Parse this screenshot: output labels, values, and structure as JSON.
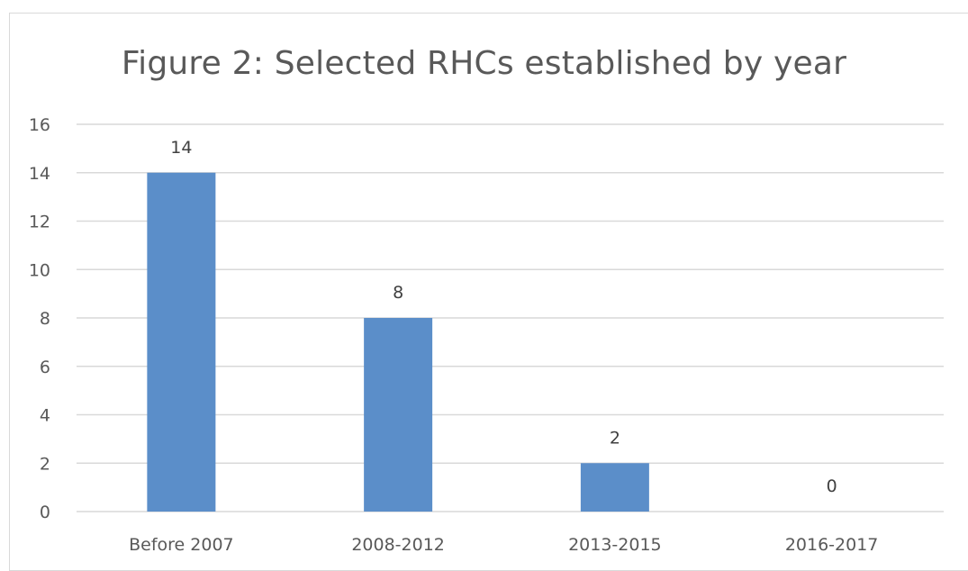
{
  "chart_data": {
    "type": "bar",
    "title": "Figure 2: Selected RHCs established by year",
    "categories": [
      "Before 2007",
      "2008-2012",
      "2013-2015",
      "2016-2017"
    ],
    "values": [
      14,
      8,
      2,
      0
    ],
    "data_labels": [
      "14",
      "8",
      "2",
      "0"
    ],
    "ylim": [
      0,
      16
    ],
    "yticks": [
      0,
      2,
      4,
      6,
      8,
      10,
      12,
      14,
      16
    ],
    "ytick_labels": [
      "0",
      "2",
      "4",
      "6",
      "8",
      "10",
      "12",
      "14",
      "16"
    ],
    "grid": true,
    "legend": "none",
    "bar_color": "#5b8ec9",
    "grid_color": "#d9d9d9",
    "text_color": "#595959"
  }
}
